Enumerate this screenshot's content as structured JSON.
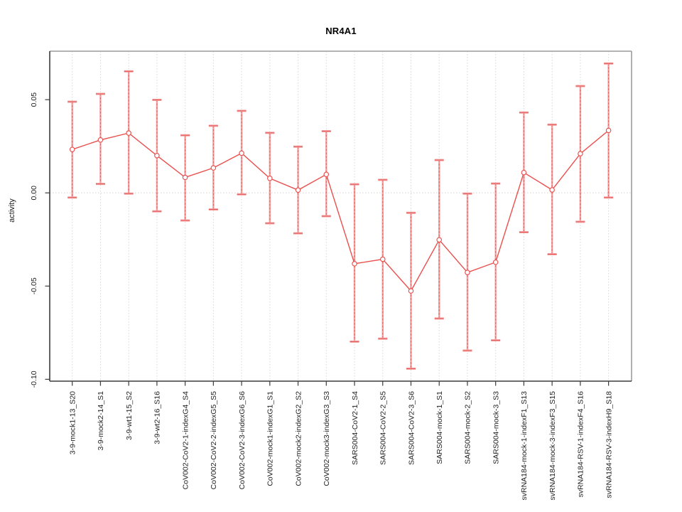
{
  "chart_data": {
    "type": "line",
    "subtype": "points-with-error-bars",
    "title": "NR4A1",
    "ylabel": "activity",
    "xlabel": "",
    "legend": "none",
    "grid": {
      "vertical_dotted_per_category": true,
      "zero_line_dotted": true
    },
    "ylim": [
      -0.101,
      0.076
    ],
    "yticks": {
      "values": [
        0.05,
        0.0,
        -0.05,
        -0.1
      ],
      "labels": [
        "0.05",
        "0.00",
        "-0.05",
        "-0.10"
      ]
    },
    "categories": [
      "3-9-mock1-13_S20",
      "3-9-mock2-14_S1",
      "3-9-wt1-15_S2",
      "3-9-wt2-16_S16",
      "CoV002-CoV2-1-indexG4_S4",
      "CoV002-CoV2-2-indexG5_S5",
      "CoV002-CoV2-3-indexG6_S6",
      "CoV002-mock1-indexG1_S1",
      "CoV002-mock2-indexG2_S2",
      "CoV002-mock3-indexG3_S3",
      "SARS004-CoV2-1_S4",
      "SARS004-CoV2-2_S5",
      "SARS004-CoV2-3_S6",
      "SARS004-mock-1_S1",
      "SARS004-mock-2_S2",
      "SARS004-mock-3_S3",
      "svRNA184-mock-1-indexF1_S13",
      "svRNA184-mock-3-indexF3_S15",
      "svRNA184-RSV-1-indexF4_S16",
      "svRNA184-RSV-3-indexH9_S18"
    ],
    "series": [
      {
        "name": "activity",
        "values": [
          0.0233,
          0.0284,
          0.0321,
          0.02,
          0.0083,
          0.0134,
          0.0213,
          0.0078,
          0.0015,
          0.0099,
          -0.038,
          -0.0356,
          -0.0526,
          -0.0252,
          -0.0427,
          -0.0372,
          0.0109,
          0.0016,
          0.021,
          0.0335
        ],
        "ci_lower": [
          -0.0025,
          0.0048,
          -0.0004,
          -0.0099,
          -0.0148,
          -0.0089,
          -0.0008,
          -0.0163,
          -0.0217,
          -0.0125,
          -0.0798,
          -0.0782,
          -0.0943,
          -0.0674,
          -0.0846,
          -0.0791,
          -0.0211,
          -0.0329,
          -0.0155,
          -0.0025
        ],
        "ci_upper": [
          0.0489,
          0.0531,
          0.0652,
          0.0499,
          0.0309,
          0.036,
          0.044,
          0.0322,
          0.0248,
          0.0331,
          0.0046,
          0.007,
          -0.0107,
          0.0176,
          -0.0004,
          0.005,
          0.0431,
          0.0366,
          0.0573,
          0.0694
        ]
      }
    ],
    "colors": {
      "point": "#e9504e",
      "line": "#e9504e",
      "error_bar": "#f4a1a1",
      "error_core": "#e25252",
      "grid": "#d7d7d7",
      "zero_line": "#dcd2d2",
      "axis": "#3c3c3c",
      "frame": "#9c9c9c",
      "tick_text": "#222222"
    }
  }
}
